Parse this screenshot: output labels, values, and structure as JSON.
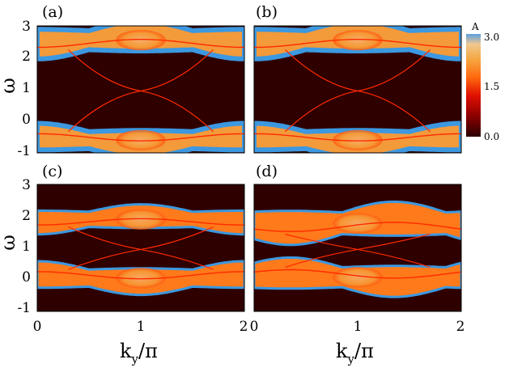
{
  "chart_data": {
    "type": "heatmap",
    "xlabel_main": "k",
    "xlabel_sub": "y",
    "xlabel_tail": "/π",
    "ylabel": "ω",
    "xlim": [
      0,
      2
    ],
    "ylim": [
      -1,
      3
    ],
    "x_ticks": [
      "0",
      "1",
      "2"
    ],
    "x_ticks_right": [
      "0",
      "1",
      "2"
    ],
    "y_ticks": [
      "3",
      "2",
      "1",
      "0",
      "-1"
    ],
    "colorbar": {
      "label": "A",
      "ticks": [
        "3.0",
        "1.5",
        "0.0"
      ],
      "range": [
        0,
        3.0
      ],
      "colors": [
        "#2a0000",
        "#8b0000",
        "#e01000",
        "#ff6a10",
        "#f5a640",
        "#f0c890",
        "#5aa0e0"
      ]
    },
    "panels": [
      {
        "label": "(a)",
        "upper_band": [
          2.05,
          3.05
        ],
        "lower_band": [
          -1.05,
          -0.15
        ],
        "edge_crossing": {
          "x": 1,
          "y": 0.95
        },
        "bright": true
      },
      {
        "label": "(b)",
        "upper_band": [
          2.05,
          3.05
        ],
        "lower_band": [
          -1.05,
          -0.15
        ],
        "edge_crossing": {
          "x": 1,
          "y": 0.95
        },
        "bright": true
      },
      {
        "label": "(c)",
        "upper_band": [
          1.5,
          2.3
        ],
        "lower_band": [
          -0.4,
          0.5
        ],
        "edge_crossing": {
          "x": 1,
          "y": 0.95
        },
        "bright": false
      },
      {
        "label": "(d)",
        "upper_band": [
          1.2,
          2.35
        ],
        "lower_band": [
          -0.45,
          0.6
        ],
        "edge_crossing": {
          "x": 1,
          "y": 0.95
        },
        "bright": false
      }
    ]
  }
}
